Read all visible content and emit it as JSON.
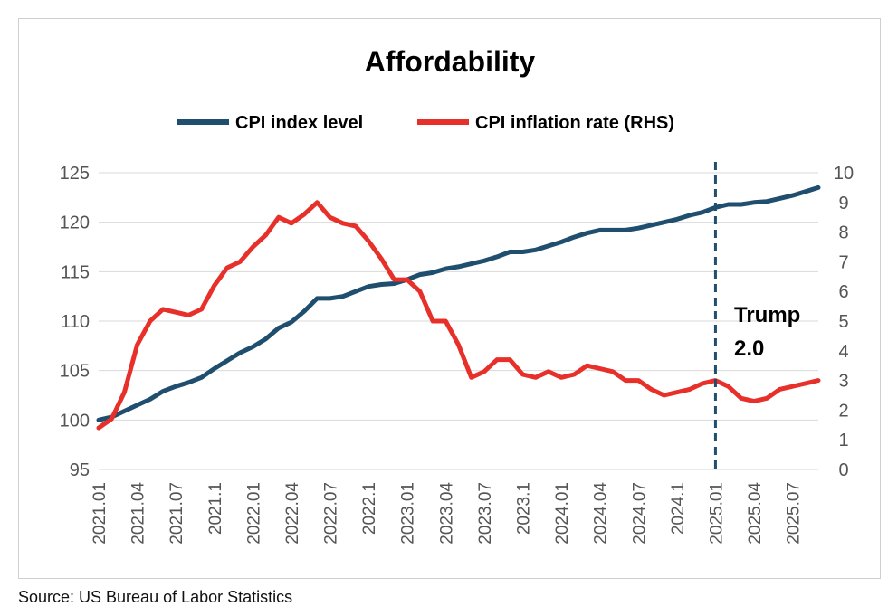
{
  "chart_data": {
    "type": "line",
    "title": "Affordability",
    "legend_position": "top",
    "grid": true,
    "x_ticks": [
      "2021.01",
      "2021.04",
      "2021.07",
      "2021.1",
      "2022.01",
      "2022.04",
      "2022.07",
      "2022.1",
      "2023.01",
      "2023.04",
      "2023.07",
      "2023.1",
      "2024.01",
      "2024.04",
      "2024.07",
      "2024.1",
      "2025.01",
      "2025.04",
      "2025.07"
    ],
    "y_left": {
      "min": 95,
      "max": 125,
      "ticks": [
        95,
        100,
        105,
        110,
        115,
        120,
        125
      ]
    },
    "y_right": {
      "min": 0,
      "max": 10,
      "ticks": [
        0,
        1,
        2,
        3,
        4,
        5,
        6,
        7,
        8,
        9,
        10
      ]
    },
    "series": [
      {
        "name": "CPI index level",
        "axis": "left",
        "color": "#1f4e6e",
        "values": [
          100.0,
          100.3,
          100.9,
          101.5,
          102.1,
          102.9,
          103.4,
          103.8,
          104.3,
          105.2,
          106.0,
          106.8,
          107.4,
          108.2,
          109.3,
          109.9,
          111.0,
          112.3,
          112.3,
          112.5,
          113.0,
          113.5,
          113.7,
          113.8,
          114.2,
          114.7,
          114.9,
          115.3,
          115.5,
          115.8,
          116.1,
          116.5,
          117.0,
          117.0,
          117.2,
          117.6,
          118.0,
          118.5,
          118.9,
          119.2,
          119.2,
          119.2,
          119.4,
          119.7,
          120.0,
          120.3,
          120.7,
          121.0,
          121.5,
          121.8,
          121.8,
          122.0,
          122.1,
          122.4,
          122.7,
          123.1,
          123.5
        ]
      },
      {
        "name": "CPI inflation rate (RHS)",
        "axis": "right",
        "color": "#e8302a",
        "values": [
          1.4,
          1.7,
          2.6,
          4.2,
          5.0,
          5.4,
          5.3,
          5.2,
          5.4,
          6.2,
          6.8,
          7.0,
          7.5,
          7.9,
          8.5,
          8.3,
          8.6,
          9.0,
          8.5,
          8.3,
          8.2,
          7.7,
          7.1,
          6.4,
          6.4,
          6.0,
          5.0,
          5.0,
          4.2,
          3.1,
          3.3,
          3.7,
          3.7,
          3.2,
          3.1,
          3.3,
          3.1,
          3.2,
          3.5,
          3.4,
          3.3,
          3.0,
          3.0,
          2.7,
          2.5,
          2.6,
          2.7,
          2.9,
          3.0,
          2.8,
          2.4,
          2.3,
          2.4,
          2.7,
          2.8,
          2.9,
          3.0
        ]
      }
    ],
    "annotations": [
      {
        "type": "vline",
        "x": "2025.01",
        "style": "dashed",
        "color": "#1f4e6e"
      },
      {
        "type": "text",
        "lines": [
          "Trump",
          "2.0"
        ]
      }
    ]
  },
  "source": "Source: US Bureau of Labor Statistics"
}
